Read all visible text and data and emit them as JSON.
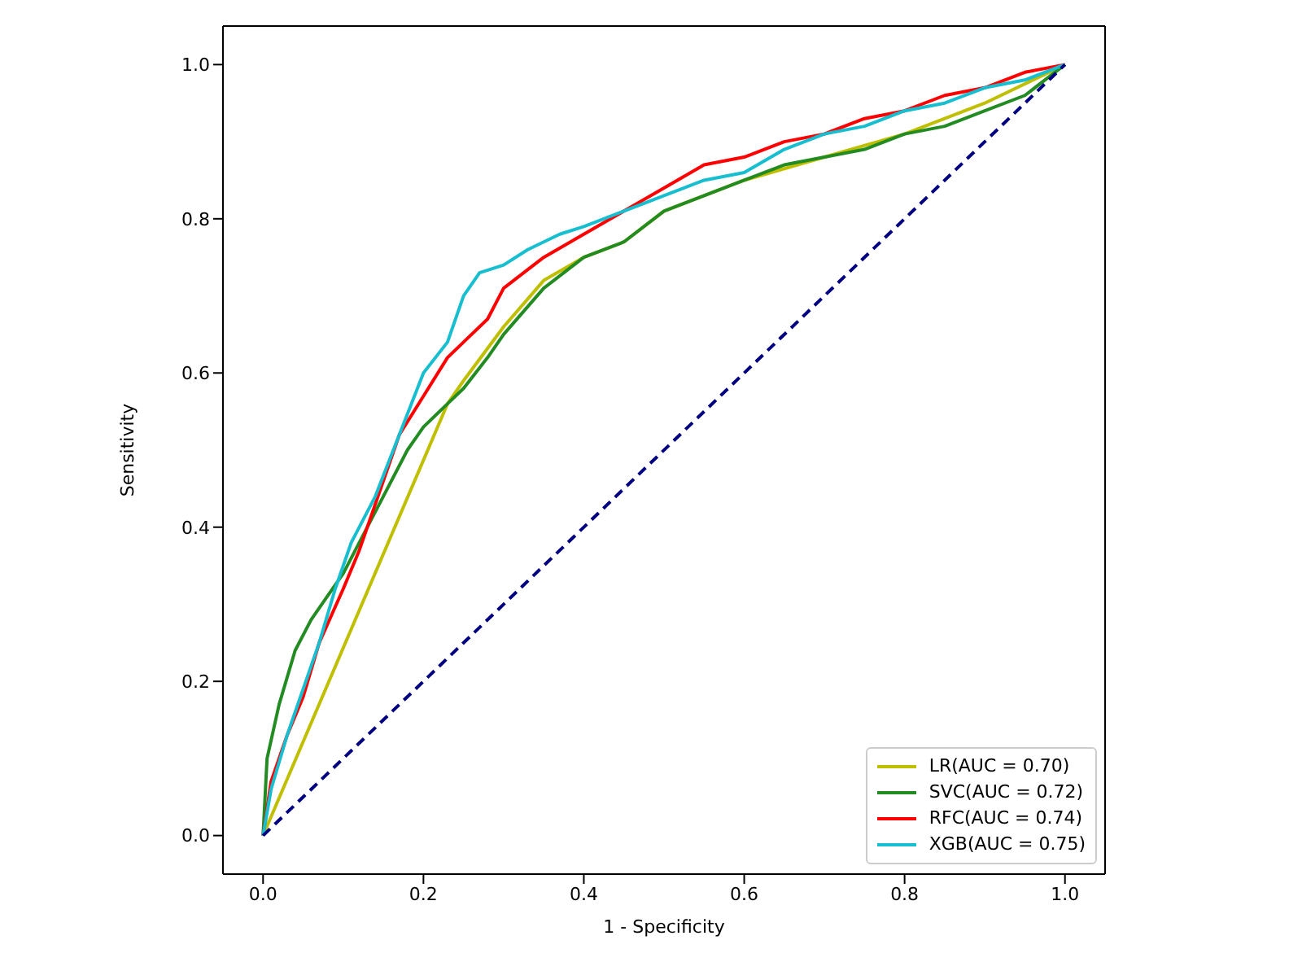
{
  "chart_data": {
    "type": "line",
    "xlabel": "1 - Specificity",
    "ylabel": "Sensitivity",
    "xlim": [
      -0.05,
      1.05
    ],
    "ylim": [
      -0.05,
      1.05
    ],
    "xticks": [
      {
        "value": 0,
        "label": "0.0"
      },
      {
        "value": 0.2,
        "label": "0.2"
      },
      {
        "value": 0.4,
        "label": "0.4"
      },
      {
        "value": 0.6,
        "label": "0.6"
      },
      {
        "value": 0.8,
        "label": "0.8"
      },
      {
        "value": 1,
        "label": "1.0"
      }
    ],
    "yticks": [
      {
        "value": 0,
        "label": "0.0"
      },
      {
        "value": 0.2,
        "label": "0.2"
      },
      {
        "value": 0.4,
        "label": "0.4"
      },
      {
        "value": 0.6,
        "label": "0.6"
      },
      {
        "value": 0.8,
        "label": "0.8"
      },
      {
        "value": 1,
        "label": "1.0"
      }
    ],
    "grid": false,
    "legend": "bottom right",
    "marker": "none",
    "series": [
      {
        "name": "LR(AUC = 0.70)",
        "color": "#bfbf00",
        "x": [
          0,
          0.23,
          0.25,
          0.3,
          0.35,
          0.4,
          0.45,
          0.5,
          0.6,
          0.7,
          0.8,
          0.9,
          1
        ],
        "values": [
          0,
          0.56,
          0.59,
          0.66,
          0.72,
          0.75,
          0.77,
          0.81,
          0.85,
          0.88,
          0.91,
          0.95,
          1
        ]
      },
      {
        "name": "SVC(AUC = 0.72)",
        "color": "#228b22",
        "x": [
          0,
          0.005,
          0.02,
          0.04,
          0.06,
          0.08,
          0.1,
          0.12,
          0.15,
          0.18,
          0.2,
          0.23,
          0.25,
          0.28,
          0.3,
          0.35,
          0.4,
          0.45,
          0.5,
          0.55,
          0.6,
          0.65,
          0.7,
          0.75,
          0.8,
          0.85,
          0.9,
          0.95,
          1
        ],
        "values": [
          0,
          0.1,
          0.17,
          0.24,
          0.28,
          0.31,
          0.34,
          0.38,
          0.44,
          0.5,
          0.53,
          0.56,
          0.58,
          0.62,
          0.65,
          0.71,
          0.75,
          0.77,
          0.81,
          0.83,
          0.85,
          0.87,
          0.88,
          0.89,
          0.91,
          0.92,
          0.94,
          0.96,
          1
        ]
      },
      {
        "name": "RFC(AUC = 0.74)",
        "color": "#ff0000",
        "x": [
          0,
          0.01,
          0.03,
          0.05,
          0.07,
          0.1,
          0.12,
          0.15,
          0.17,
          0.2,
          0.23,
          0.25,
          0.28,
          0.3,
          0.35,
          0.4,
          0.45,
          0.5,
          0.55,
          0.6,
          0.65,
          0.7,
          0.75,
          0.8,
          0.85,
          0.9,
          0.95,
          1
        ],
        "values": [
          0,
          0.07,
          0.13,
          0.18,
          0.25,
          0.32,
          0.37,
          0.46,
          0.52,
          0.57,
          0.62,
          0.64,
          0.67,
          0.71,
          0.75,
          0.78,
          0.81,
          0.84,
          0.87,
          0.88,
          0.9,
          0.91,
          0.93,
          0.94,
          0.96,
          0.97,
          0.99,
          1
        ]
      },
      {
        "name": "XGB(AUC = 0.75)",
        "color": "#17becf",
        "x": [
          0,
          0.01,
          0.03,
          0.05,
          0.07,
          0.09,
          0.11,
          0.14,
          0.17,
          0.2,
          0.23,
          0.25,
          0.27,
          0.3,
          0.33,
          0.37,
          0.4,
          0.45,
          0.5,
          0.55,
          0.6,
          0.65,
          0.7,
          0.75,
          0.8,
          0.85,
          0.9,
          0.95,
          1
        ],
        "values": [
          0,
          0.06,
          0.13,
          0.19,
          0.25,
          0.32,
          0.38,
          0.44,
          0.52,
          0.6,
          0.64,
          0.7,
          0.73,
          0.74,
          0.76,
          0.78,
          0.79,
          0.81,
          0.83,
          0.85,
          0.86,
          0.89,
          0.91,
          0.92,
          0.94,
          0.95,
          0.97,
          0.98,
          1
        ]
      },
      {
        "color": "#000080",
        "line_style": "dashed",
        "x": [
          0,
          1
        ],
        "values": [
          0,
          1
        ]
      }
    ]
  }
}
